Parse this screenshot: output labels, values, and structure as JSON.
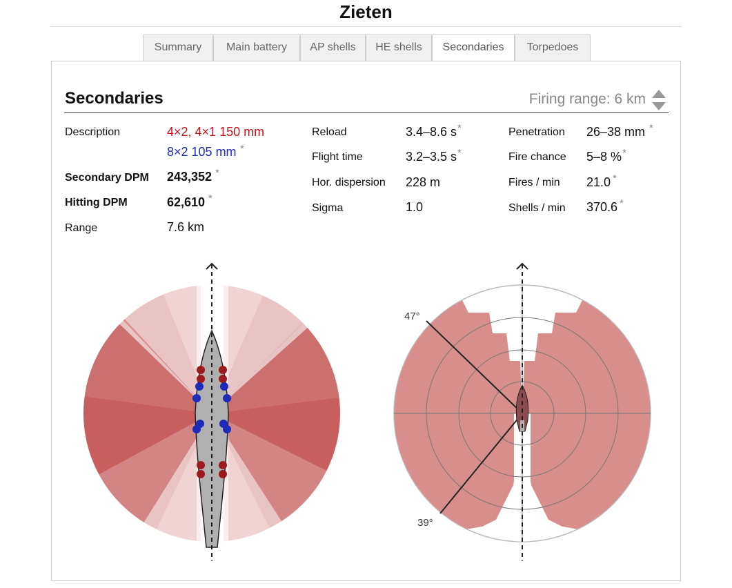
{
  "page": {
    "title": "Zieten"
  },
  "tabs": [
    {
      "label": "Summary",
      "active": false
    },
    {
      "label": "Main battery",
      "active": false
    },
    {
      "label": "AP shells",
      "active": false
    },
    {
      "label": "HE shells",
      "active": false
    },
    {
      "label": "Secondaries",
      "active": true
    },
    {
      "label": "Torpedoes",
      "active": false
    }
  ],
  "section": {
    "heading": "Secondaries",
    "firing_range_label": "Firing range:",
    "firing_range_value": "6 km"
  },
  "stats": {
    "description_label": "Description",
    "description_line1": "4×2, 4×1 150 mm",
    "description_line2": "8×2 105 mm",
    "secondary_dpm_label": "Secondary DPM",
    "secondary_dpm": "243,352",
    "hitting_dpm_label": "Hitting DPM",
    "hitting_dpm": "62,610",
    "range_label": "Range",
    "range": "7.6 km",
    "reload_label": "Reload",
    "reload": "3.4–8.6 s",
    "flight_time_label": "Flight time",
    "flight_time": "3.2–3.5 s",
    "hor_dispersion_label": "Hor. dispersion",
    "hor_dispersion": "228 m",
    "sigma_label": "Sigma",
    "sigma": "1.0",
    "penetration_label": "Penetration",
    "penetration": "26–38 mm",
    "fire_chance_label": "Fire chance",
    "fire_chance": "5–8 %",
    "fires_min_label": "Fires / min",
    "fires_min": "21.0",
    "shells_min_label": "Shells / min",
    "shells_min": "370.6",
    "footnote_mark": "*"
  },
  "diagram": {
    "angle_top_label": "47°",
    "angle_bottom_label": "39°"
  },
  "colors": {
    "arc_red": "#c0282c",
    "large_gun": "#9b1b1f",
    "small_gun": "#1e2ab8",
    "hull": "#b0b0b0"
  }
}
